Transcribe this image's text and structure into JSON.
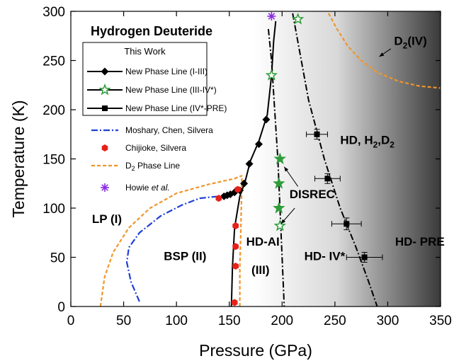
{
  "chart_data": {
    "type": "scatter",
    "title": "Hydrogen Deuteride",
    "xlabel": "Pressure (GPa)",
    "ylabel": "Temperature (K)",
    "xlim": [
      0,
      350
    ],
    "ylim": [
      0,
      300
    ],
    "x_ticks": [
      "0",
      "50",
      "100",
      "150",
      "200",
      "250",
      "300",
      "350"
    ],
    "y_ticks": [
      "0",
      "50",
      "100",
      "150",
      "200",
      "250",
      "300"
    ],
    "background": "gradient from white (left) to dark gray (right) beyond ~170 GPa",
    "legend": {
      "heading": "This Work",
      "placement": "top-left",
      "entries": [
        {
          "id": "i_iii",
          "label": "New Phase Line (I-III)",
          "marker": "diamond",
          "color": "#000000"
        },
        {
          "id": "iii_iv",
          "label": "New Phase Line (III-IV*)",
          "marker": "open-star",
          "color": "#2e9c3a"
        },
        {
          "id": "iv_pre",
          "label": "New Phase Line (IV*-PRE)",
          "marker": "square",
          "color": "#000000"
        },
        {
          "id": "moshary",
          "label": "Moshary, Chen, Silvera",
          "marker": "dash-dot-line",
          "color": "#1f3fd6"
        },
        {
          "id": "chijioke",
          "label": "Chijioke, Silvera",
          "marker": "hexagon",
          "color": "#e8201a"
        },
        {
          "id": "d2line",
          "label_main": "D",
          "label_sub": "2",
          "label_rest": " Phase Line",
          "marker": "dashed-line",
          "color": "#f0952a"
        },
        {
          "id": "howie",
          "label_main": "Howie ",
          "label_italic": "et al.",
          "marker": "asterisk",
          "color": "#8a2be2"
        }
      ]
    },
    "series": [
      {
        "name": "New Phase Line (I-III)",
        "marker": "diamond",
        "color": "#000000",
        "points": [
          [
            145,
            112
          ],
          [
            148,
            113
          ],
          [
            151,
            114
          ],
          [
            155,
            116
          ],
          [
            160,
            118
          ],
          [
            164,
            125
          ],
          [
            169,
            145
          ],
          [
            178,
            165
          ],
          [
            185,
            190
          ]
        ]
      },
      {
        "name": "New Phase Line (III-IV*)",
        "marker": "star",
        "color": "#2e9c3a",
        "points": [
          [
            190,
            235
          ],
          [
            198,
            150
          ],
          [
            197,
            125
          ],
          [
            197,
            100
          ],
          [
            198,
            82
          ],
          [
            215,
            292
          ]
        ],
        "open_points": [
          0,
          4,
          5
        ]
      },
      {
        "name": "New Phase Line (IV*-PRE)",
        "marker": "square",
        "color": "#000000",
        "points": [
          [
            233,
            175
          ],
          [
            243,
            130
          ],
          [
            261,
            84
          ],
          [
            278,
            50
          ]
        ],
        "x_err": [
          10,
          12,
          14,
          17
        ],
        "y_err": [
          5,
          5,
          6,
          5
        ]
      },
      {
        "name": "Chijioke, Silvera",
        "marker": "hexagon",
        "color": "#e8201a",
        "points": [
          [
            140,
            110
          ],
          [
            158,
            119
          ],
          [
            156,
            82
          ],
          [
            156,
            61
          ],
          [
            156,
            41
          ],
          [
            155,
            4
          ]
        ]
      },
      {
        "name": "Howie et al.",
        "marker": "asterisk",
        "color": "#8a2be2",
        "points": [
          [
            190,
            295
          ]
        ]
      }
    ],
    "lines": [
      {
        "name": "Moshary, Chen, Silvera",
        "style": "dash-dot",
        "color": "#1f3fd6",
        "points": [
          [
            65,
            5
          ],
          [
            57,
            25
          ],
          [
            53,
            45
          ],
          [
            55,
            60
          ],
          [
            65,
            75
          ],
          [
            85,
            92
          ],
          [
            105,
            103
          ],
          [
            122,
            110
          ],
          [
            140,
            112
          ]
        ]
      },
      {
        "name": "D2 Phase Line (I-II)",
        "style": "dashed",
        "color": "#f0952a",
        "points": [
          [
            28,
            0
          ],
          [
            32,
            30
          ],
          [
            40,
            55
          ],
          [
            55,
            80
          ],
          [
            75,
            100
          ],
          [
            100,
            115
          ],
          [
            130,
            124
          ],
          [
            155,
            130
          ],
          [
            162,
            133
          ]
        ]
      },
      {
        "name": "D2 Phase Line (II-III)",
        "style": "dashed",
        "color": "#f0952a",
        "points": [
          [
            160,
            0
          ],
          [
            160,
            40
          ],
          [
            161,
            80
          ],
          [
            162,
            133
          ]
        ]
      },
      {
        "name": "D2 Phase Line (IV)",
        "style": "dashed",
        "color": "#f0952a",
        "points": [
          [
            244,
            298
          ],
          [
            252,
            282
          ],
          [
            262,
            265
          ],
          [
            275,
            250
          ],
          [
            290,
            238
          ],
          [
            310,
            229
          ],
          [
            330,
            224
          ],
          [
            350,
            222
          ]
        ]
      },
      {
        "name": "HD I-III boundary",
        "style": "solid",
        "color": "#000000",
        "points": [
          [
            152,
            0
          ],
          [
            153,
            40
          ],
          [
            155,
            80
          ],
          [
            160,
            112
          ],
          [
            165,
            127
          ],
          [
            170,
            148
          ],
          [
            178,
            168
          ],
          [
            186,
            195
          ],
          [
            190,
            235
          ],
          [
            192,
            270
          ],
          [
            194,
            290
          ]
        ]
      },
      {
        "name": "HD III-IV* boundary",
        "style": "dash-dot",
        "color": "#000000",
        "points": [
          [
            187,
            282
          ],
          [
            190,
            250
          ],
          [
            193,
            200
          ],
          [
            196,
            150
          ],
          [
            198,
            100
          ],
          [
            200,
            50
          ],
          [
            202,
            0
          ]
        ]
      },
      {
        "name": "HD IV*-PRE boundary",
        "style": "dash-dot",
        "color": "#000000",
        "points": [
          [
            210,
            298
          ],
          [
            225,
            210
          ],
          [
            240,
            150
          ],
          [
            255,
            100
          ],
          [
            270,
            60
          ],
          [
            282,
            25
          ],
          [
            290,
            0
          ]
        ]
      }
    ],
    "annotations": [
      {
        "text": "LP (I)",
        "x": 20,
        "y": 85
      },
      {
        "text": "BSP (II)",
        "x": 88,
        "y": 47
      },
      {
        "text": "HD-AI",
        "x": 166,
        "y": 62
      },
      {
        "text": "(III)",
        "x": 171,
        "y": 33
      },
      {
        "text": "HD- IV*",
        "x": 221,
        "y": 47
      },
      {
        "text": "HD- PRE",
        "x": 307,
        "y": 62
      },
      {
        "text": "DISREC",
        "x": 207,
        "y": 110
      },
      {
        "text_main": "HD, H",
        "sub1": "2",
        "mid": ",D",
        "sub2": "2",
        "x": 255,
        "y": 165
      },
      {
        "text_main": "D",
        "sub1": "2",
        "rest": "(IV)",
        "x": 306,
        "y": 266
      }
    ]
  }
}
